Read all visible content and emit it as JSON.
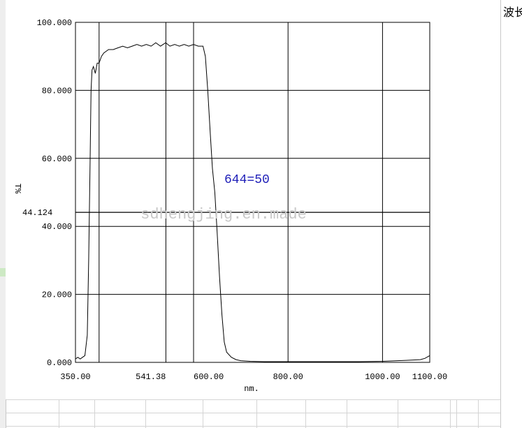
{
  "sidebar": {
    "header_text": "波长"
  },
  "chart_data": {
    "type": "line",
    "xlabel": "nm.",
    "ylabel": "T%",
    "xlim": [
      350,
      1100
    ],
    "ylim": [
      0,
      100
    ],
    "x_ticks": [
      "350.00",
      "541.38",
      "600.00",
      "800.00",
      "1000.00",
      "1100.00"
    ],
    "x_tick_values": [
      350,
      541.38,
      600,
      800,
      1000,
      1100
    ],
    "y_ticks": [
      "0.000",
      "20.000",
      "40.000",
      "60.000",
      "80.000",
      "100.000"
    ],
    "y_tick_values": [
      0,
      20,
      40,
      60,
      80,
      100
    ],
    "grid": true,
    "marker_line": {
      "label": "44.124",
      "value": 44.124
    },
    "extra_vlines": [
      400
    ],
    "annotation": "644=50",
    "annotation_color": "#1f1fb8",
    "watermark": "sdhengjing.en.made",
    "series": [
      {
        "x": [
          350,
          355,
          360,
          365,
          370,
          375,
          378,
          381,
          383,
          385,
          388,
          392,
          396,
          400,
          405,
          410,
          420,
          430,
          440,
          450,
          460,
          470,
          480,
          490,
          500,
          510,
          520,
          530,
          541,
          550,
          560,
          570,
          580,
          590,
          600,
          610,
          620,
          625,
          630,
          635,
          640,
          645,
          650,
          655,
          660,
          665,
          670,
          680,
          690,
          700,
          720,
          750,
          780,
          800,
          850,
          900,
          950,
          1000,
          1050,
          1080,
          1090,
          1100
        ],
        "y": [
          1,
          1.5,
          1,
          1.5,
          2,
          8,
          30,
          60,
          80,
          86,
          87,
          85,
          88,
          88,
          90,
          91,
          92,
          92,
          92.5,
          93,
          92.5,
          93,
          93.5,
          93,
          93.5,
          93,
          94,
          93,
          94,
          93,
          93.5,
          93,
          93.5,
          93,
          93.5,
          93,
          93,
          90,
          80,
          68,
          57,
          50,
          38,
          25,
          14,
          6,
          3,
          1.5,
          0.8,
          0.5,
          0.3,
          0.2,
          0.2,
          0.2,
          0.2,
          0.2,
          0.2,
          0.3,
          0.6,
          0.8,
          1.2,
          2
        ]
      }
    ]
  }
}
